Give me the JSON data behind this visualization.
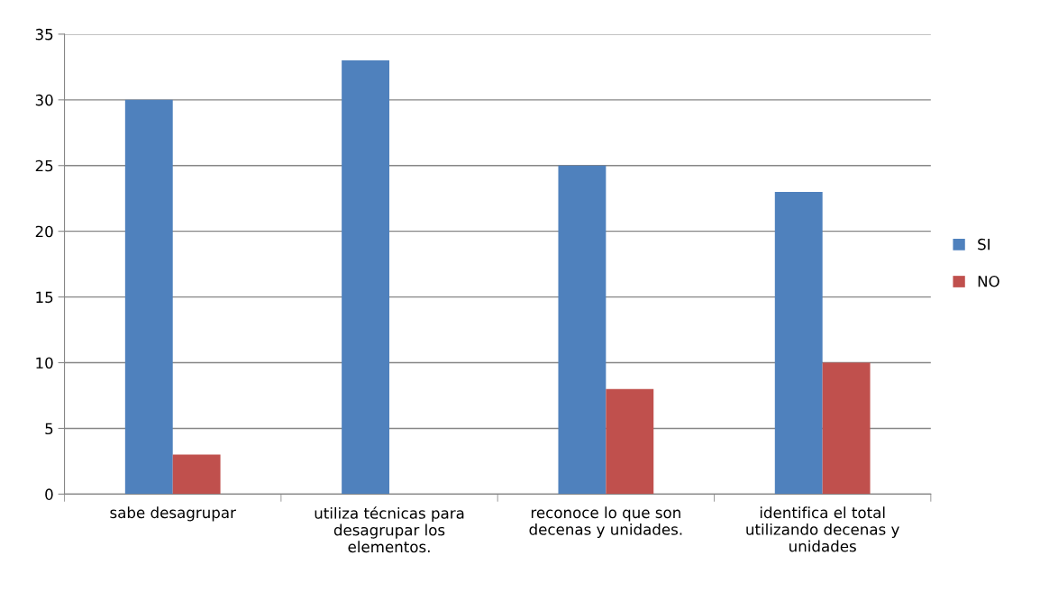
{
  "chart_data": {
    "type": "bar",
    "categories": [
      "sabe desagrupar",
      "utiliza técnicas para\ndesagrupar los\nelementos.",
      "reconoce lo que son\ndecenas y unidades.",
      "identifica el total\nutilizando decenas y\nunidades"
    ],
    "series": [
      {
        "name": "SI",
        "color": "#4f81bd",
        "values": [
          30,
          33,
          25,
          23
        ]
      },
      {
        "name": "NO",
        "color": "#c0504d",
        "values": [
          3,
          0,
          8,
          10
        ]
      }
    ],
    "ylim": [
      0,
      35
    ],
    "yticks": [
      0,
      5,
      10,
      15,
      20,
      25,
      30,
      35
    ],
    "grid": "y",
    "legend": "right"
  }
}
